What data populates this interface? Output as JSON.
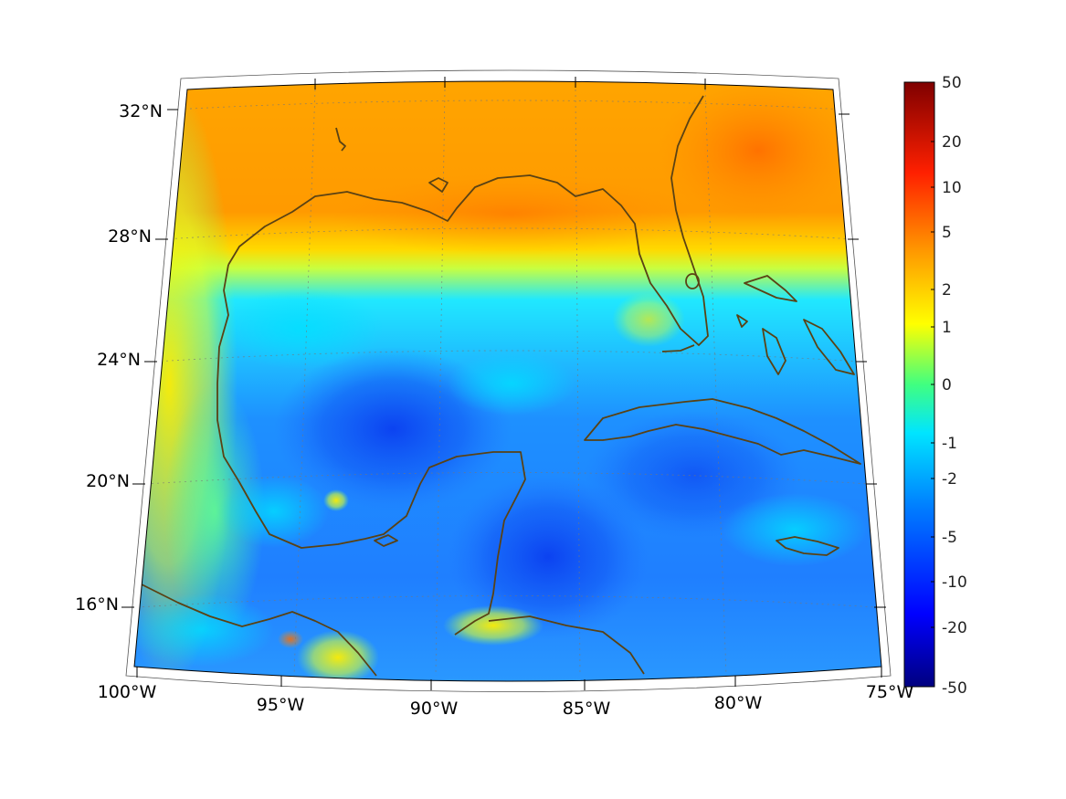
{
  "map": {
    "projection": "lambert-conic",
    "region": "Gulf of Mexico and Caribbean",
    "lat_labels": [
      "32°N",
      "28°N",
      "24°N",
      "20°N",
      "16°N"
    ],
    "lon_labels": [
      "100°W",
      "95°W",
      "90°W",
      "85°W",
      "80°W",
      "75°W"
    ],
    "coastline_color": "#5a4214",
    "graticule": "dotted"
  },
  "colorbar": {
    "colormap": "jet",
    "scale": "symmetric-log",
    "tick_labels": [
      "50",
      "20",
      "10",
      "5",
      "2",
      "1",
      "0",
      "-1",
      "-2",
      "-5",
      "-10",
      "-20",
      "-50"
    ],
    "max": 50,
    "min": -50
  }
}
